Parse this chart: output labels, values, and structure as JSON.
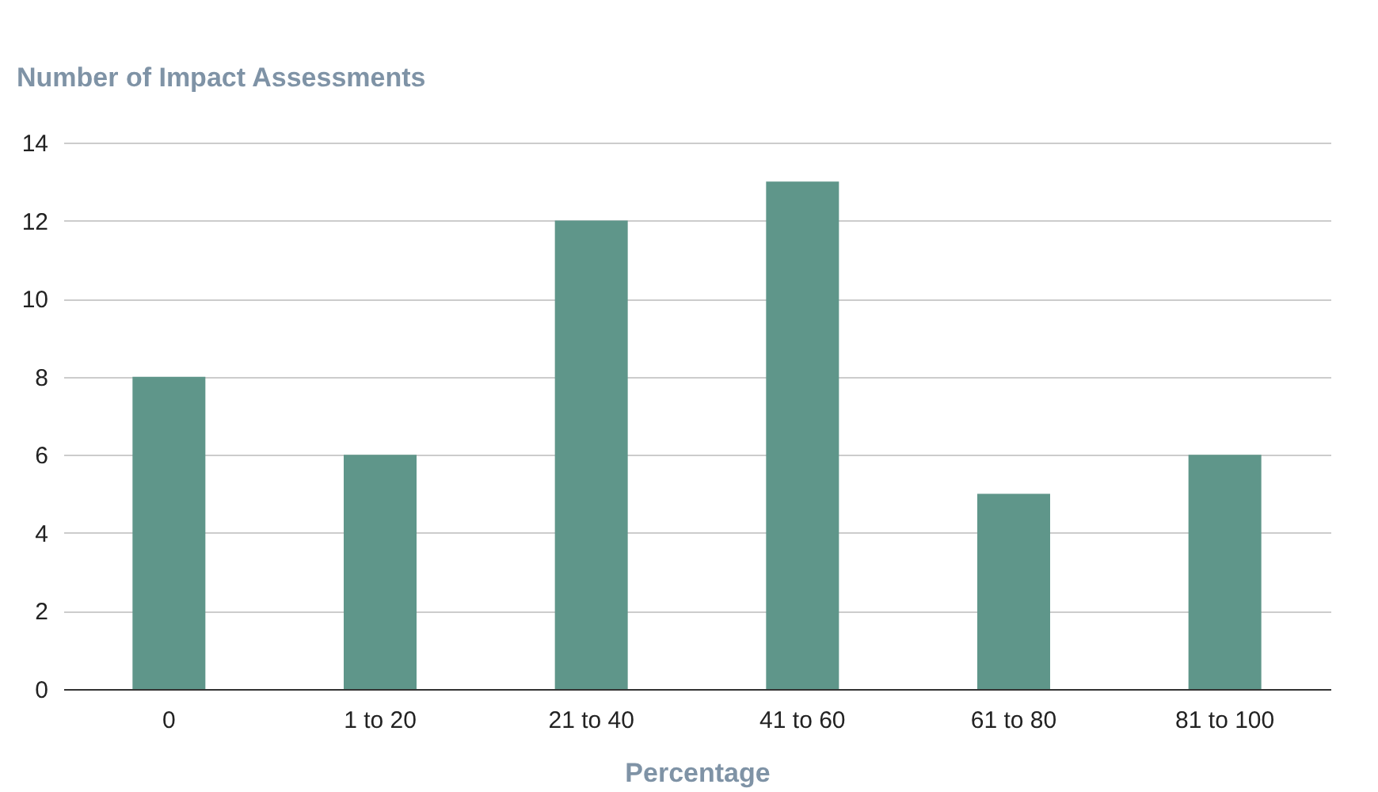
{
  "chart_data": {
    "type": "bar",
    "ylabel": "Number of Impact Assessments",
    "xlabel": "Percentage",
    "categories": [
      "0",
      "1 to 20",
      "21 to 40",
      "41 to 60",
      "61 to 80",
      "81 to 100"
    ],
    "values": [
      8,
      6,
      12,
      13,
      5,
      6
    ],
    "color": "#5f968a",
    "ylim": [
      0,
      14
    ],
    "yticks": [
      0,
      2,
      4,
      6,
      8,
      10,
      12,
      14
    ],
    "grid": "y"
  }
}
